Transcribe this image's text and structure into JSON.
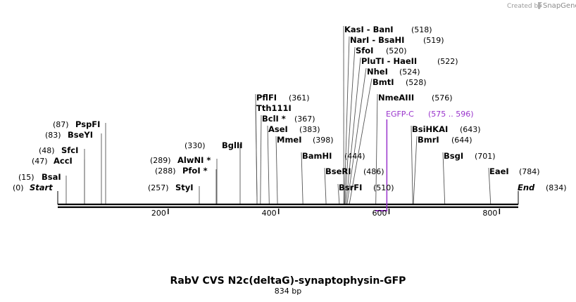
{
  "watermark": {
    "prefix": "Created by",
    "brand": "SnapGene"
  },
  "map": {
    "title": "RabV CVS N2c(deltaG)-synaptophysin-GFP",
    "length_label": "834 bp",
    "length": 834,
    "start_label": "Start",
    "start_pos": "(0)",
    "end_label": "End",
    "end_pos": "(834)",
    "ticks": [
      {
        "value": 200,
        "label": "200"
      },
      {
        "value": 400,
        "label": "400"
      },
      {
        "value": 600,
        "label": "600"
      },
      {
        "value": 800,
        "label": "800"
      }
    ],
    "feature": {
      "name": "EGFP-C",
      "range": "(575 .. 596)",
      "start": 575,
      "end": 596,
      "color": "#9933cc"
    },
    "sites": [
      {
        "name": "BsaI",
        "pos": "(15)",
        "bp": 15
      },
      {
        "name": "AccI",
        "pos": "(47)",
        "bp": 47
      },
      {
        "name": "SfcI",
        "pos": "(48)",
        "bp": 48
      },
      {
        "name": "BseYI",
        "pos": "(83)",
        "bp": 83
      },
      {
        "name": "PspFI",
        "pos": "(87)",
        "bp": 87
      },
      {
        "name": "StyI",
        "pos": "(257)",
        "bp": 257
      },
      {
        "name": "PfoI *",
        "pos": "(288)",
        "bp": 288
      },
      {
        "name": "AlwNI *",
        "pos": "(289)",
        "bp": 289
      },
      {
        "name": "BglII",
        "pos": "(330)",
        "bp": 330
      },
      {
        "name": "PflFI",
        "pos": "(361)",
        "bp": 361
      },
      {
        "name": "Tth111I",
        "pos": "",
        "bp": 361
      },
      {
        "name": "BclI *",
        "pos": "(367)",
        "bp": 367
      },
      {
        "name": "AseI",
        "pos": "(383)",
        "bp": 383
      },
      {
        "name": "MmeI",
        "pos": "(398)",
        "bp": 398
      },
      {
        "name": "BamHI",
        "pos": "(444)",
        "bp": 444
      },
      {
        "name": "BseRI",
        "pos": "(486)",
        "bp": 486
      },
      {
        "name": "BsrFI",
        "pos": "(510)",
        "bp": 510
      },
      {
        "name": "KasI  - BanI",
        "pos": "(518)",
        "bp": 518
      },
      {
        "name": "NarI  - BsaHI",
        "pos": "(519)",
        "bp": 519
      },
      {
        "name": "SfoI",
        "pos": "(520)",
        "bp": 520
      },
      {
        "name": "PluTI  - HaeII",
        "pos": "(522)",
        "bp": 522
      },
      {
        "name": "NheI",
        "pos": "(524)",
        "bp": 524
      },
      {
        "name": "BmtI",
        "pos": "(528)",
        "bp": 528
      },
      {
        "name": "NmeAIII",
        "pos": "(576)",
        "bp": 576
      },
      {
        "name": "BsiHKAI",
        "pos": "(643)",
        "bp": 643
      },
      {
        "name": "BmrI",
        "pos": "(644)",
        "bp": 644
      },
      {
        "name": "BsgI",
        "pos": "(701)",
        "bp": 701
      },
      {
        "name": "EaeI",
        "pos": "(784)",
        "bp": 784
      }
    ]
  }
}
